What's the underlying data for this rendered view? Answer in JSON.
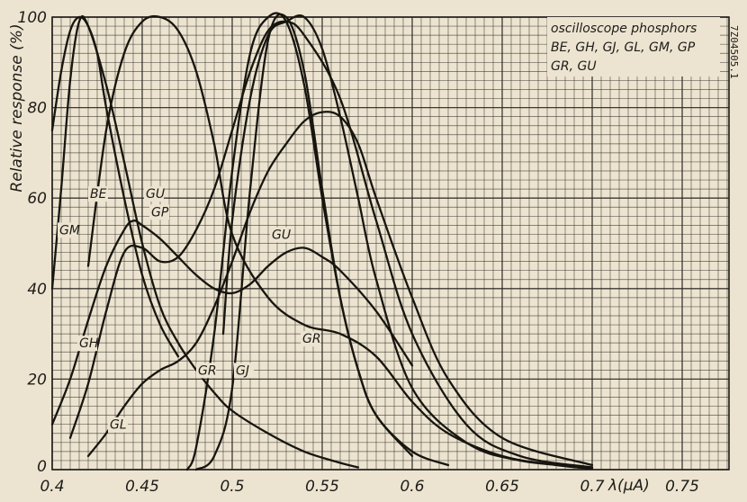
{
  "chart_data": {
    "type": "line",
    "title": "",
    "xlabel": "λ(μA)",
    "ylabel": "Relative response (%)",
    "xlim": [
      0.4,
      0.77
    ],
    "ylim": [
      0,
      100
    ],
    "grid": true,
    "x_ticks": [
      "0.4",
      "0.45",
      "0.5",
      "0.55",
      "0.6",
      "0.65",
      "0.7",
      "0.75"
    ],
    "y_ticks": [
      "0",
      "20",
      "40",
      "60",
      "80",
      "100"
    ],
    "legend": {
      "lines": [
        "oscilloscope phosphors",
        "BE, GH, GJ, GL, GM, GP",
        "GR, GU"
      ],
      "placement": "top-right"
    },
    "code": "7Z04505.1",
    "labels": [
      {
        "text": "BE",
        "x": 0.421,
        "y": 60
      },
      {
        "text": "GU",
        "x": 0.452,
        "y": 60
      },
      {
        "text": "GP",
        "x": 0.455,
        "y": 56
      },
      {
        "text": "GM",
        "x": 0.404,
        "y": 52
      },
      {
        "text": "GU",
        "x": 0.522,
        "y": 51
      },
      {
        "text": "GH",
        "x": 0.415,
        "y": 27
      },
      {
        "text": "GR",
        "x": 0.539,
        "y": 28
      },
      {
        "text": "GR",
        "x": 0.481,
        "y": 21
      },
      {
        "text": "GJ",
        "x": 0.502,
        "y": 21
      },
      {
        "text": "GL",
        "x": 0.432,
        "y": 9
      }
    ],
    "series": [
      {
        "name": "GM",
        "x": [
          0.4,
          0.405,
          0.41,
          0.415,
          0.42,
          0.43,
          0.44,
          0.45,
          0.46,
          0.47,
          0.48,
          0.49,
          0.5,
          0.52,
          0.54,
          0.56,
          0.57
        ],
        "y": [
          40,
          62,
          86,
          99,
          98,
          85,
          68,
          50,
          36,
          28,
          22,
          17,
          13,
          8,
          4,
          1.5,
          0.5
        ]
      },
      {
        "name": "BE",
        "x": [
          0.4,
          0.405,
          0.41,
          0.415,
          0.42,
          0.425,
          0.43,
          0.44,
          0.45,
          0.46,
          0.47
        ],
        "y": [
          75,
          88,
          97,
          100,
          98,
          92,
          80,
          60,
          43,
          32,
          25
        ]
      },
      {
        "name": "GP",
        "x": [
          0.4,
          0.41,
          0.42,
          0.43,
          0.44,
          0.445,
          0.45,
          0.46,
          0.47,
          0.48,
          0.49,
          0.5,
          0.51,
          0.52,
          0.53,
          0.54,
          0.55,
          0.56,
          0.58,
          0.6
        ],
        "y": [
          10,
          20,
          33,
          45,
          53,
          55,
          54,
          51,
          47,
          43,
          40,
          39,
          41,
          45,
          48,
          49,
          47,
          44,
          35,
          23
        ]
      },
      {
        "name": "GH",
        "x": [
          0.41,
          0.42,
          0.43,
          0.44,
          0.45,
          0.46,
          0.47,
          0.48,
          0.49,
          0.5,
          0.51,
          0.52,
          0.53,
          0.54,
          0.56,
          0.58,
          0.6,
          0.63,
          0.66,
          0.7
        ],
        "y": [
          7,
          19,
          35,
          48,
          49,
          46,
          47,
          53,
          62,
          75,
          88,
          97,
          99,
          96,
          82,
          55,
          30,
          10,
          3,
          0.5
        ]
      },
      {
        "name": "GU",
        "x": [
          0.42,
          0.43,
          0.44,
          0.45,
          0.46,
          0.47,
          0.48,
          0.49,
          0.5,
          0.52,
          0.54,
          0.56,
          0.58,
          0.6,
          0.62,
          0.65,
          0.68,
          0.7
        ],
        "y": [
          45,
          75,
          92,
          99,
          100,
          97,
          88,
          72,
          52,
          38,
          32,
          30,
          25,
          15,
          8,
          3,
          1,
          0.2
        ]
      },
      {
        "name": "GL",
        "x": [
          0.42,
          0.43,
          0.44,
          0.45,
          0.46,
          0.47,
          0.48,
          0.49,
          0.5,
          0.51,
          0.52,
          0.53,
          0.54,
          0.55,
          0.56,
          0.57,
          0.58,
          0.6,
          0.62,
          0.65,
          0.7
        ],
        "y": [
          3,
          8,
          14,
          19,
          22,
          24,
          28,
          36,
          46,
          57,
          66,
          72,
          77,
          79,
          78,
          72,
          60,
          38,
          20,
          7,
          1
        ]
      },
      {
        "name": "GR",
        "x": [
          0.475,
          0.48,
          0.49,
          0.5,
          0.51,
          0.52,
          0.53,
          0.54,
          0.55,
          0.56,
          0.57,
          0.58,
          0.6,
          0.62
        ],
        "y": [
          0,
          5,
          30,
          66,
          92,
          100,
          99,
          85,
          60,
          38,
          22,
          12,
          4,
          1
        ]
      },
      {
        "name": "GJ",
        "x": [
          0.48,
          0.49,
          0.5,
          0.51,
          0.52,
          0.53,
          0.54,
          0.55,
          0.56,
          0.57,
          0.58,
          0.6
        ],
        "y": [
          0,
          3,
          18,
          62,
          95,
          100,
          88,
          62,
          38,
          22,
          12,
          3
        ]
      },
      {
        "name": "GU",
        "x": [
          0.495,
          0.5,
          0.51,
          0.52,
          0.53,
          0.54,
          0.55,
          0.56,
          0.57,
          0.58,
          0.6,
          0.63,
          0.66,
          0.7
        ],
        "y": [
          30,
          55,
          82,
          96,
          99,
          100,
          93,
          78,
          60,
          42,
          18,
          6,
          2,
          0.5
        ]
      }
    ]
  }
}
